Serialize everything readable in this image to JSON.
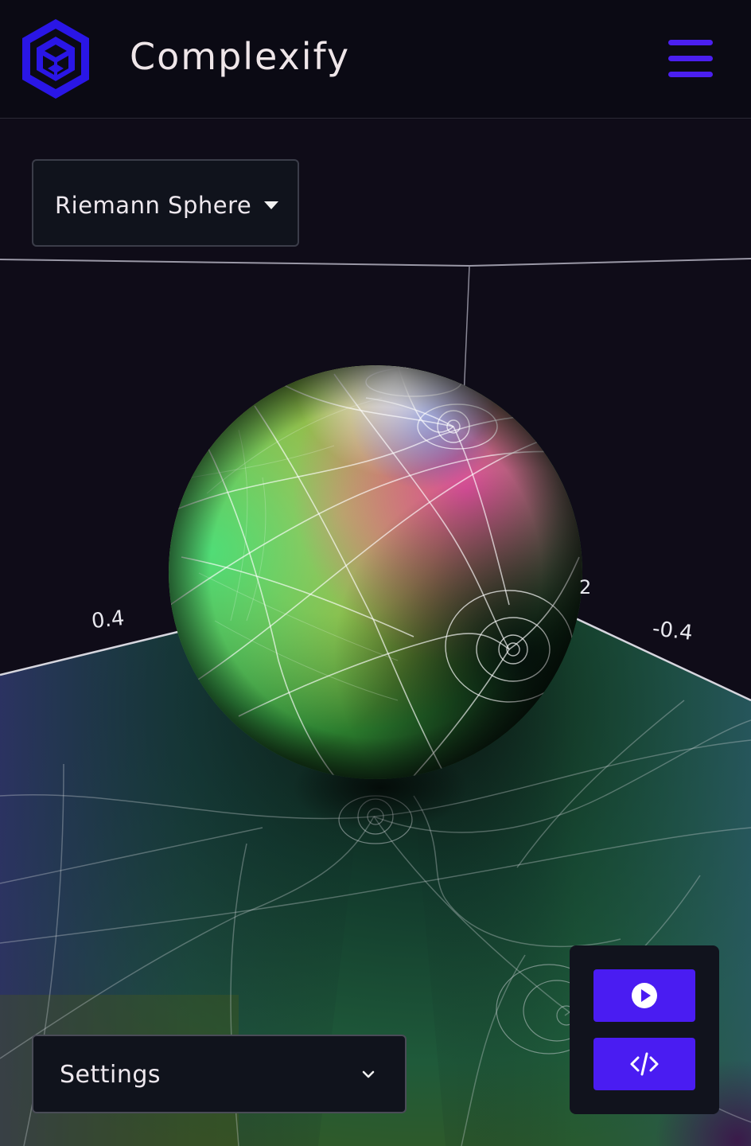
{
  "app": {
    "title": "Complexify",
    "logo_icon": "hexagon-cube-logo",
    "menu_icon": "hamburger-menu-icon",
    "accent_color": "#4b1ff0"
  },
  "view_selector": {
    "selected": "Riemann Sphere"
  },
  "axes": {
    "labels": [
      "0.4",
      "-0.4",
      "2"
    ]
  },
  "settings": {
    "label": "Settings"
  },
  "actions": {
    "play_icon": "play-icon",
    "code_icon": "code-icon",
    "button_color": "#4a1cf2"
  }
}
